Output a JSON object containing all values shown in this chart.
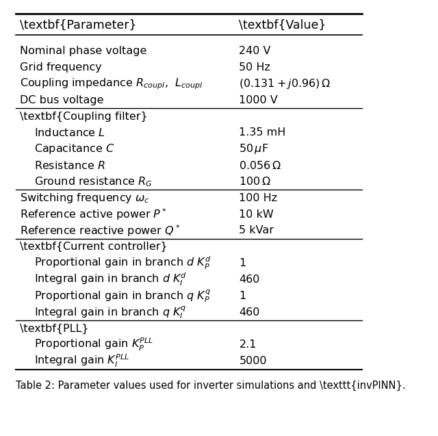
{
  "title": "Table 2: Parameter values used for inverter simulations and \\texttt{invPINN}.",
  "col_headers": [
    "Parameter",
    "Value"
  ],
  "rows": [
    {
      "param": "Nominal phase voltage",
      "value": "240 V",
      "indent": false,
      "bold": false,
      "section": false
    },
    {
      "param": "Grid frequency",
      "value": "50 Hz",
      "indent": false,
      "bold": false,
      "section": false
    },
    {
      "param": "Coupling impedance $R_{coupl}$,  $L_{coupl}$",
      "value": "$(0.131 + j0.96)\\,\\Omega$",
      "indent": false,
      "bold": false,
      "section": false
    },
    {
      "param": "DC bus voltage",
      "value": "1000 V",
      "indent": false,
      "bold": false,
      "section": false
    },
    {
      "param": "Coupling filter",
      "value": "",
      "indent": false,
      "bold": true,
      "section": true
    },
    {
      "param": "Inductance $L$",
      "value": "1.35 mH",
      "indent": true,
      "bold": false,
      "section": false
    },
    {
      "param": "Capacitance $C$",
      "value": "$50\\,\\mu$F",
      "indent": true,
      "bold": false,
      "section": false
    },
    {
      "param": "Resistance $R$",
      "value": "$0.056\\,\\Omega$",
      "indent": true,
      "bold": false,
      "section": false
    },
    {
      "param": "Ground resistance $R_G$",
      "value": "$100\\,\\Omega$",
      "indent": true,
      "bold": false,
      "section": false
    },
    {
      "param": "Switching frequency $\\omega_c$",
      "value": "100 Hz",
      "indent": false,
      "bold": false,
      "section": false
    },
    {
      "param": "Reference active power $P^*$",
      "value": "10 kW",
      "indent": false,
      "bold": false,
      "section": false
    },
    {
      "param": "Reference reactive power $Q^*$",
      "value": "5 kVar",
      "indent": false,
      "bold": false,
      "section": false
    },
    {
      "param": "Current controller",
      "value": "",
      "indent": false,
      "bold": true,
      "section": true
    },
    {
      "param": "Proportional gain in branch $d$ $K_P^d$",
      "value": "1",
      "indent": true,
      "bold": false,
      "section": false
    },
    {
      "param": "Integral gain in branch $d$ $K_I^d$",
      "value": "460",
      "indent": true,
      "bold": false,
      "section": false
    },
    {
      "param": "Proportional gain in branch $q$ $K_P^q$",
      "value": "1",
      "indent": true,
      "bold": false,
      "section": false
    },
    {
      "param": "Integral gain in branch $q$ $K_I^q$",
      "value": "460",
      "indent": true,
      "bold": false,
      "section": false
    },
    {
      "param": "PLL",
      "value": "",
      "indent": false,
      "bold": true,
      "section": true
    },
    {
      "param": "Proportional gain $K_P^{PLL}$",
      "value": "2.1",
      "indent": true,
      "bold": false,
      "section": false
    },
    {
      "param": "Integral gain $K_I^{PLL}$",
      "value": "5000",
      "indent": true,
      "bold": false,
      "section": false
    }
  ],
  "separator_after": [
    3,
    8,
    11,
    16
  ],
  "bg_color": "#ffffff",
  "text_color": "#000000",
  "line_color": "#000000",
  "font_size": 11.5,
  "header_font_size": 12.5,
  "caption_font_size": 10.5
}
